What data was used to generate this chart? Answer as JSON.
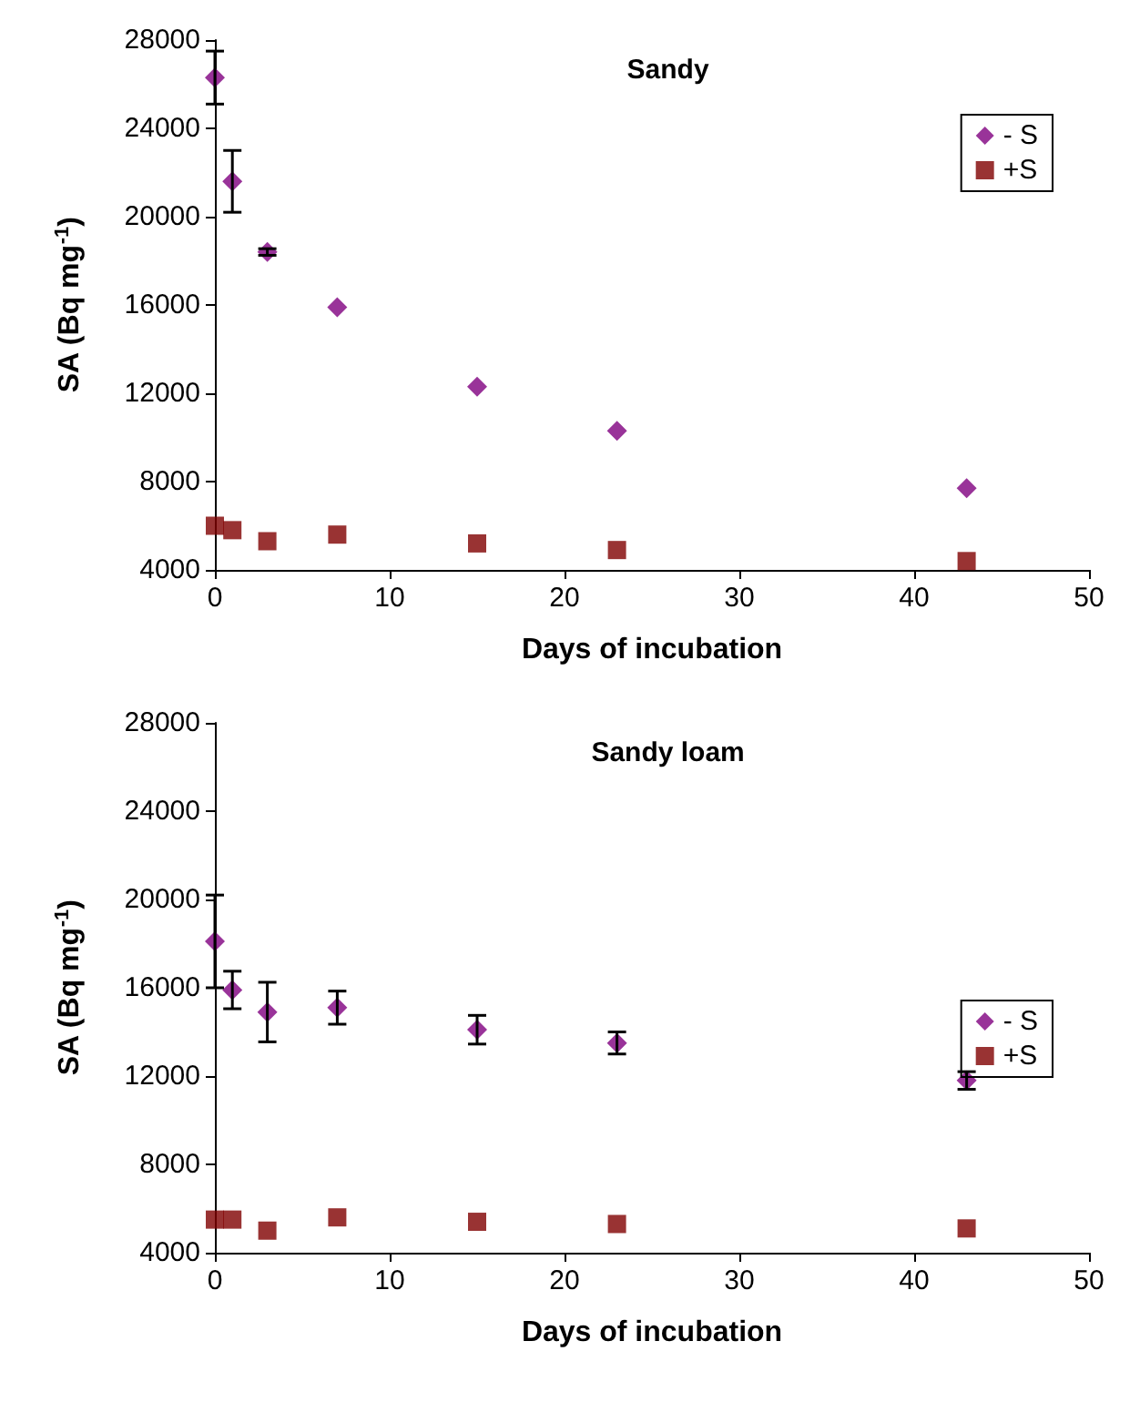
{
  "chart_data": [
    {
      "type": "scatter",
      "title": "Sandy",
      "xlabel": "Days of incubation",
      "ylabel": "SA (Bq mg$^{-1}$)",
      "x": [
        0,
        1,
        3,
        7,
        15,
        23,
        43
      ],
      "xlim": [
        0,
        50
      ],
      "xticks": [
        0,
        10,
        20,
        30,
        40,
        50
      ],
      "ylim": [
        4000,
        28000
      ],
      "yticks": [
        4000,
        8000,
        12000,
        16000,
        20000,
        24000,
        28000
      ],
      "grid": false,
      "legend": "top right",
      "series": [
        {
          "name": "- S",
          "color": "#800080",
          "marker": "diamond",
          "values": [
            26300,
            21600,
            18400,
            15900,
            12300,
            10300,
            7700
          ],
          "errors": [
            1200,
            1400,
            150,
            null,
            null,
            null,
            null
          ]
        },
        {
          "name": "+S",
          "color": "#800000",
          "marker": "square",
          "values": [
            6000,
            5800,
            5300,
            5600,
            5200,
            4900,
            4400
          ]
        }
      ]
    },
    {
      "type": "scatter",
      "title": "Sandy loam",
      "xlabel": "Days of incubation",
      "ylabel": "SA (Bq mg$^{-1}$)",
      "x": [
        0,
        1,
        3,
        7,
        15,
        23,
        43
      ],
      "xlim": [
        0,
        50
      ],
      "xticks": [
        0,
        10,
        20,
        30,
        40,
        50
      ],
      "ylim": [
        4000,
        28000
      ],
      "yticks": [
        4000,
        8000,
        12000,
        16000,
        20000,
        24000,
        28000
      ],
      "grid": false,
      "legend": "right",
      "series": [
        {
          "name": "- S",
          "color": "#800080",
          "marker": "diamond",
          "values": [
            18100,
            15900,
            14900,
            15100,
            14100,
            13500,
            11800
          ],
          "errors": [
            2100,
            850,
            1350,
            750,
            650,
            500,
            400
          ]
        },
        {
          "name": "+S",
          "color": "#800000",
          "marker": "square",
          "values": [
            5500,
            5500,
            5000,
            5600,
            5400,
            5300,
            5100
          ]
        }
      ]
    }
  ]
}
